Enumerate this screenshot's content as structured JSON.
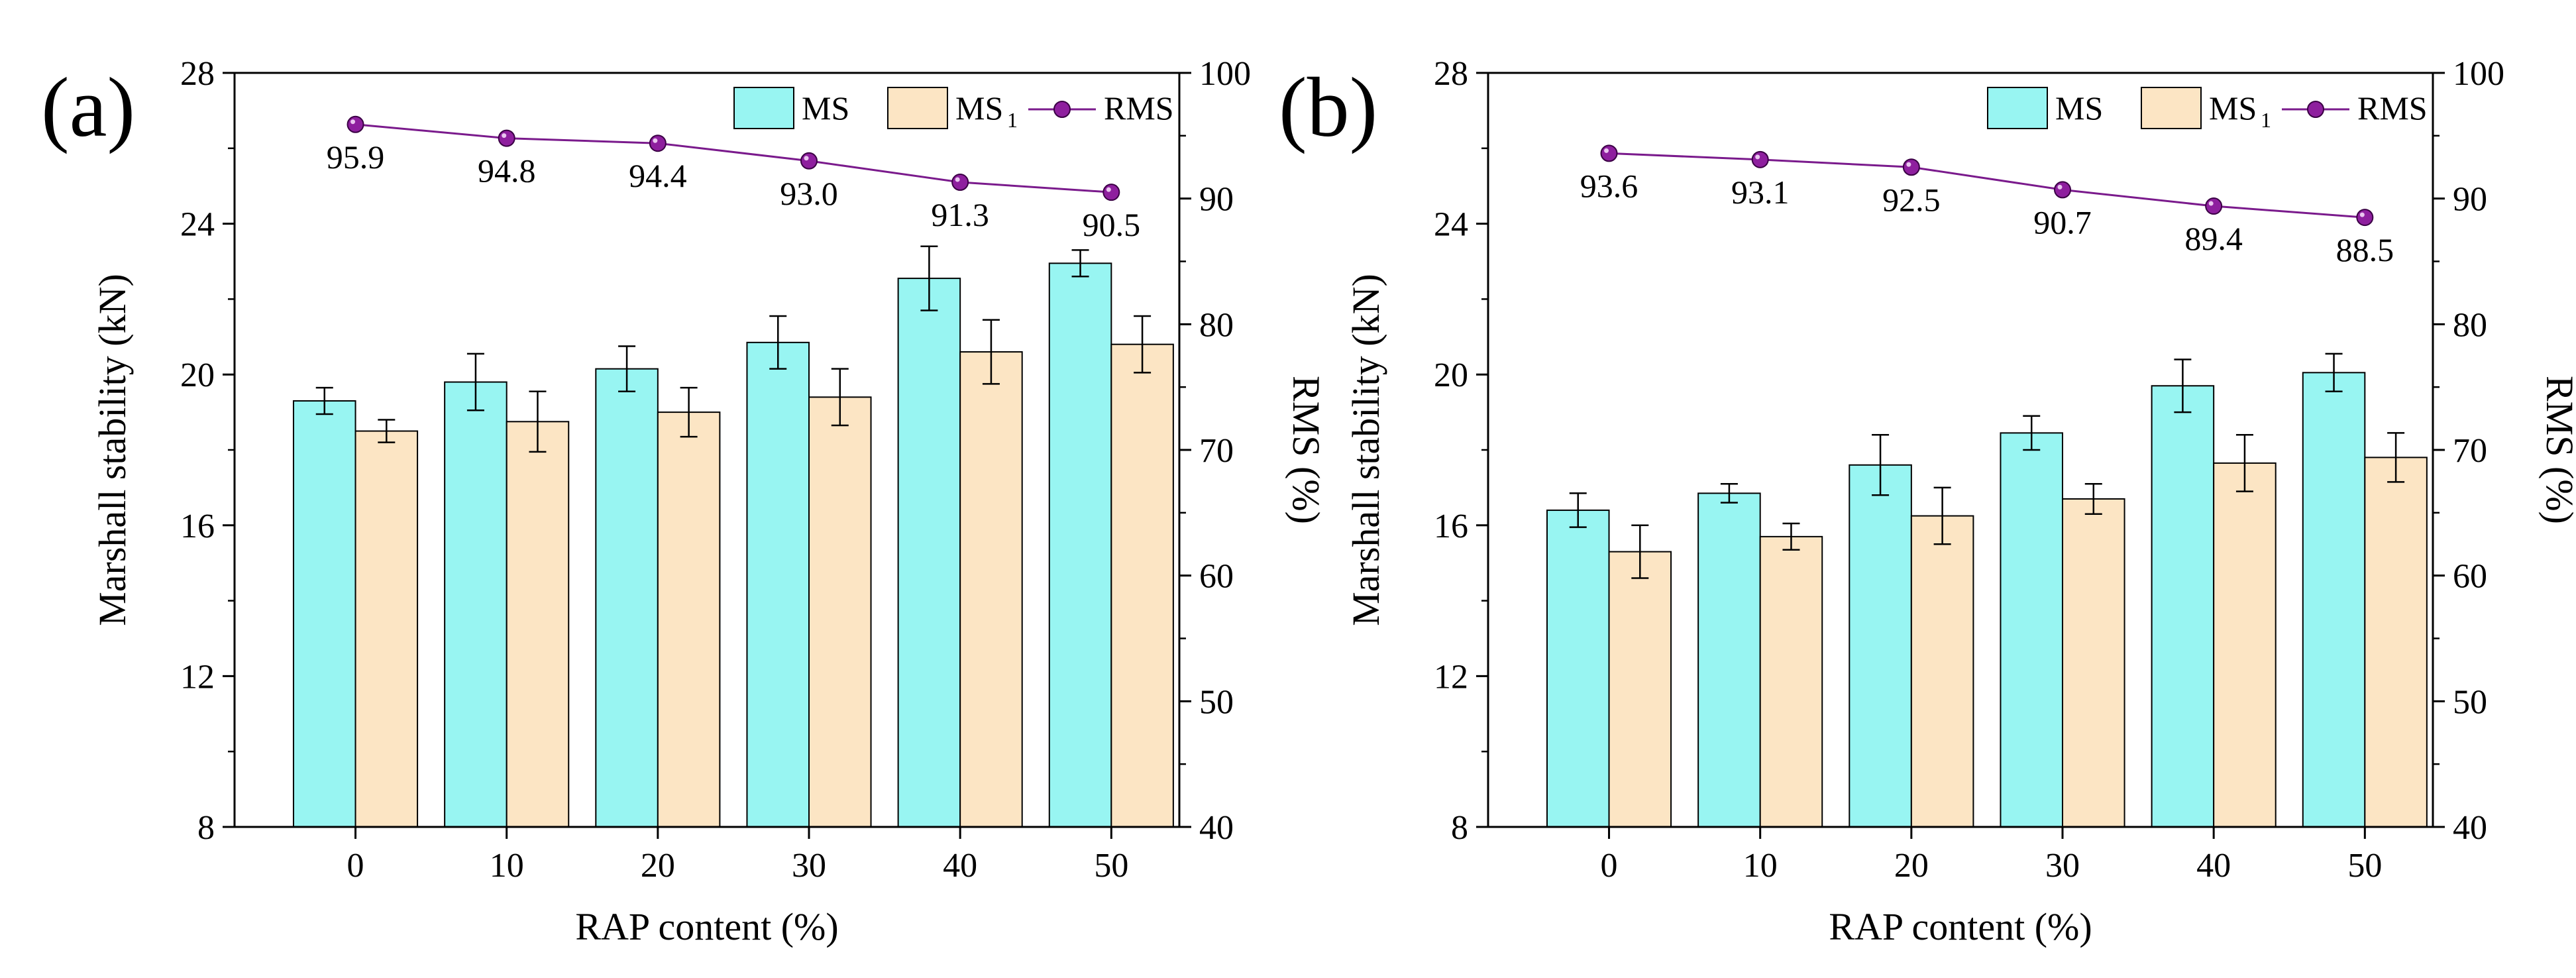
{
  "colors": {
    "ms": "#98F5F2",
    "ms1": "#FCE5C4",
    "rms": "#7A1A8C",
    "rms_marker": "#8E1F9E",
    "axis": "#000000"
  },
  "legend": {
    "ms": "MS",
    "ms1_base": "MS",
    "ms1_sub": "1",
    "rms": "RMS"
  },
  "chart_data": [
    {
      "type": "bar",
      "panel": "(a)",
      "categories": [
        "0",
        "10",
        "20",
        "30",
        "40",
        "50"
      ],
      "xlabel": "RAP content (%)",
      "ylabel": "Marshall stability (kN)",
      "y2label": "RMS (%)",
      "ylim": [
        8,
        28
      ],
      "yticks": [
        "8",
        "12",
        "16",
        "20",
        "24",
        "28"
      ],
      "y2lim": [
        40,
        100
      ],
      "y2ticks": [
        "40",
        "50",
        "60",
        "70",
        "80",
        "90",
        "100"
      ],
      "series": [
        {
          "name": "MS",
          "values": [
            19.3,
            19.8,
            20.15,
            20.85,
            22.55,
            22.95
          ],
          "errors": [
            0.35,
            0.75,
            0.6,
            0.7,
            0.85,
            0.35
          ]
        },
        {
          "name": "MS1",
          "values": [
            18.5,
            18.75,
            19.0,
            19.4,
            20.6,
            20.8
          ],
          "errors": [
            0.3,
            0.8,
            0.65,
            0.75,
            0.85,
            0.75
          ]
        }
      ],
      "line": {
        "name": "RMS",
        "values": [
          95.9,
          94.8,
          94.4,
          93.0,
          91.3,
          90.5
        ],
        "labels": [
          "95.9",
          "94.8",
          "94.4",
          "93.0",
          "91.3",
          "90.5"
        ]
      }
    },
    {
      "type": "bar",
      "panel": "(b)",
      "categories": [
        "0",
        "10",
        "20",
        "30",
        "40",
        "50"
      ],
      "xlabel": "RAP content (%)",
      "ylabel": "Marshall stability (kN)",
      "y2label": "RMS (%)",
      "ylim": [
        8,
        28
      ],
      "yticks": [
        "8",
        "12",
        "16",
        "20",
        "24",
        "28"
      ],
      "y2lim": [
        40,
        100
      ],
      "y2ticks": [
        "40",
        "50",
        "60",
        "70",
        "80",
        "90",
        "100"
      ],
      "series": [
        {
          "name": "MS",
          "values": [
            16.4,
            16.85,
            17.6,
            18.45,
            19.7,
            20.05
          ],
          "errors": [
            0.45,
            0.25,
            0.8,
            0.45,
            0.7,
            0.5
          ]
        },
        {
          "name": "MS1",
          "values": [
            15.3,
            15.7,
            16.25,
            16.7,
            17.65,
            17.8
          ],
          "errors": [
            0.7,
            0.35,
            0.75,
            0.4,
            0.75,
            0.65
          ]
        }
      ],
      "line": {
        "name": "RMS",
        "values": [
          93.6,
          93.1,
          92.5,
          90.7,
          89.4,
          88.5
        ],
        "labels": [
          "93.6",
          "93.1",
          "92.5",
          "90.7",
          "89.4",
          "88.5"
        ]
      }
    }
  ]
}
